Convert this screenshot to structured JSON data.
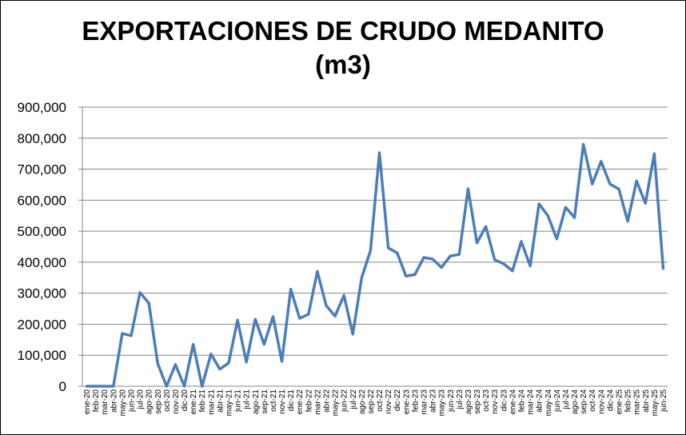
{
  "chart_data": {
    "type": "line",
    "title_lines": [
      "EXPORTACIONES DE CRUDO MEDANITO",
      "(m3)"
    ],
    "xlabel": "",
    "ylabel": "",
    "ylim": [
      0,
      900000
    ],
    "y_ticks": [
      "0",
      "100,000",
      "200,000",
      "300,000",
      "400,000",
      "500,000",
      "600,000",
      "700,000",
      "800,000",
      "900,000"
    ],
    "grid": true,
    "legend": "none",
    "line_color": "#4a7ebb",
    "categories": [
      "ene-20",
      "feb-20",
      "mar-20",
      "abr-20",
      "may-20",
      "jun-20",
      "jul-20",
      "ago-20",
      "sep-20",
      "oct-20",
      "nov-20",
      "dic-20",
      "ene-21",
      "feb-21",
      "mar-21",
      "abr-21",
      "may-21",
      "jun-21",
      "jul-21",
      "ago-21",
      "sep-21",
      "oct-21",
      "nov-21",
      "dic-21",
      "ene-22",
      "feb-22",
      "mar-22",
      "abr-22",
      "may-22",
      "jun-22",
      "jul-22",
      "ago-22",
      "sep-22",
      "oct-22",
      "nov-22",
      "dic-22",
      "ene-23",
      "feb-23",
      "mar-23",
      "abr-23",
      "may-23",
      "jun-23",
      "jul-23",
      "ago-23",
      "sep-23",
      "oct-23",
      "nov-23",
      "dic-23",
      "ene-24",
      "feb-24",
      "mar-24",
      "abr-24",
      "may-24",
      "jun-24",
      "jul-24",
      "ago-24",
      "sep-24",
      "oct-24",
      "nov-24",
      "dic-24",
      "ene-25",
      "feb-25",
      "mar-25",
      "abr-25",
      "may-25",
      "jun-25"
    ],
    "values": [
      0,
      0,
      0,
      0,
      170000,
      163000,
      302000,
      268000,
      73000,
      0,
      70000,
      0,
      135000,
      0,
      104000,
      55000,
      75000,
      213000,
      78000,
      216000,
      135000,
      225000,
      80000,
      313000,
      219000,
      232000,
      370000,
      260000,
      226000,
      293000,
      168000,
      350000,
      438000,
      753000,
      446000,
      430000,
      355000,
      360000,
      415000,
      410000,
      383000,
      420000,
      425000,
      637000,
      462000,
      515000,
      408000,
      395000,
      372000,
      467000,
      388000,
      588000,
      550000,
      475000,
      577000,
      544000,
      780000,
      652000,
      725000,
      652000,
      636000,
      532000,
      662000,
      590000,
      750000,
      380000
    ]
  }
}
